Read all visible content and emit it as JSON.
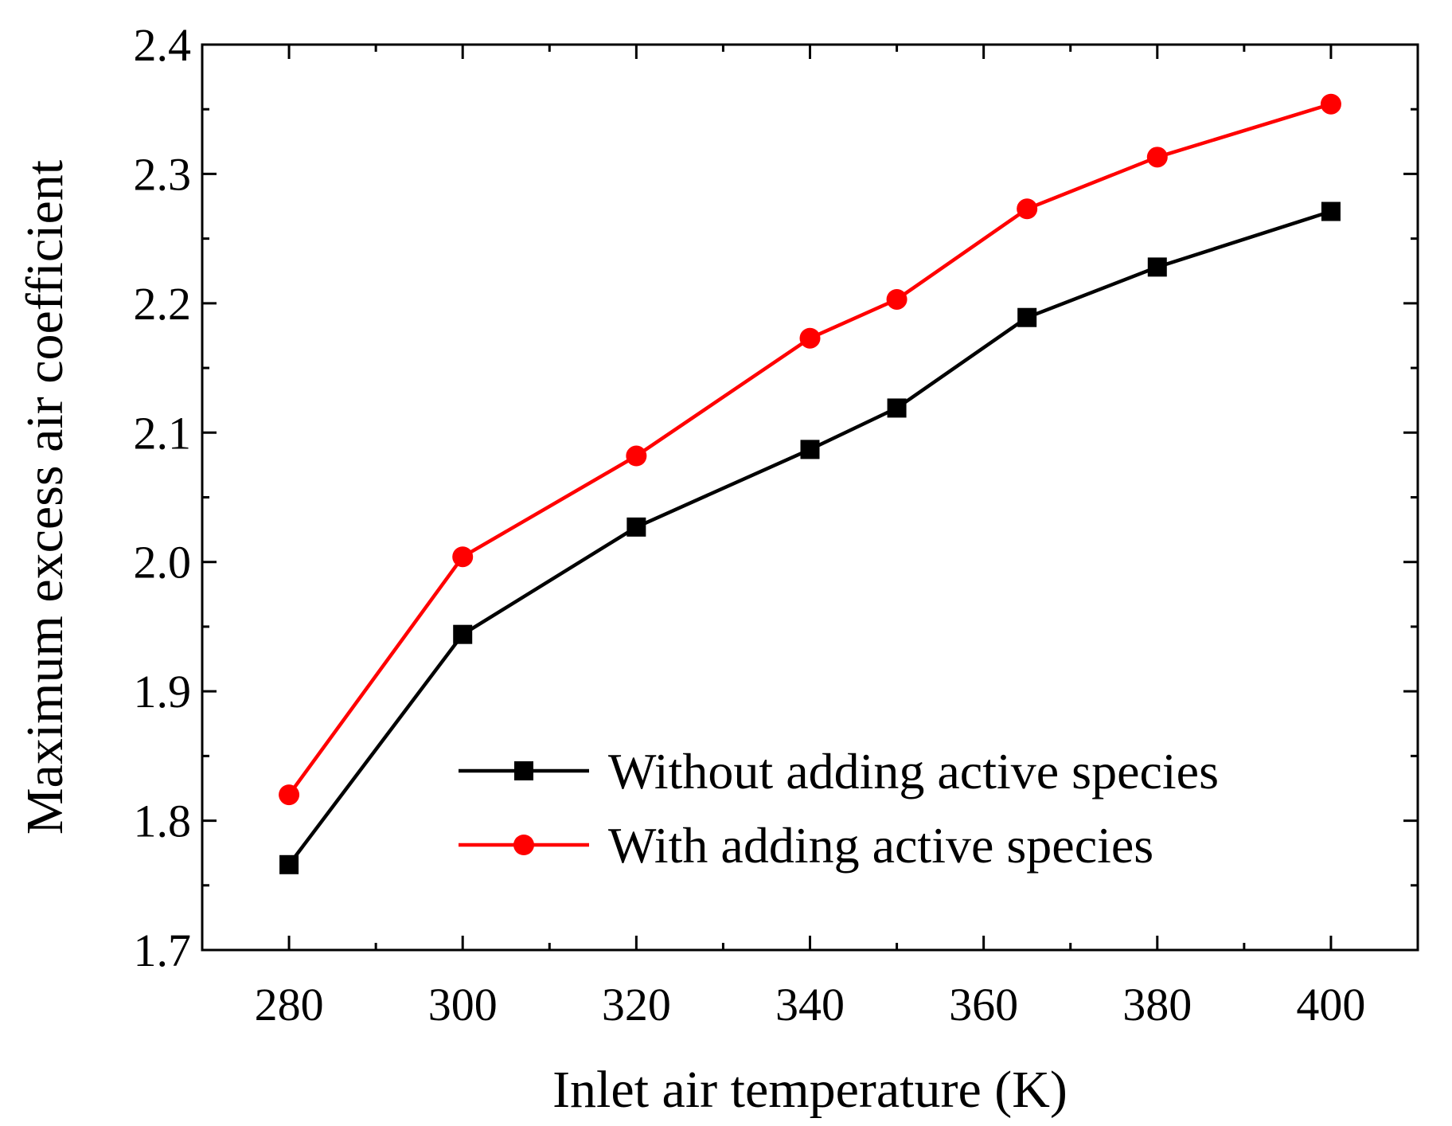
{
  "chart_data": {
    "type": "line",
    "title": "",
    "xlabel": "Inlet air temperature (K)",
    "ylabel": "Maximum excess air coefficient",
    "xlim": [
      270,
      410
    ],
    "ylim": [
      1.7,
      2.4
    ],
    "x_ticks": [
      280,
      300,
      320,
      340,
      360,
      380,
      400
    ],
    "y_ticks": [
      1.7,
      1.8,
      1.9,
      2.0,
      2.1,
      2.2,
      2.3,
      2.4
    ],
    "x_tick_labels": [
      "280",
      "300",
      "320",
      "340",
      "360",
      "380",
      "400"
    ],
    "y_tick_labels": [
      "1.7",
      "1.8",
      "1.9",
      "2.0",
      "2.1",
      "2.2",
      "2.3",
      "2.4"
    ],
    "grid": false,
    "legend_position": "lower-right",
    "series": [
      {
        "name": "Without adding active species",
        "color": "#000000",
        "marker": "square",
        "x": [
          280,
          300,
          320,
          340,
          350,
          365,
          380,
          400
        ],
        "values": [
          1.766,
          1.944,
          2.027,
          2.087,
          2.119,
          2.189,
          2.228,
          2.271
        ]
      },
      {
        "name": "With adding active species",
        "color": "#ff0000",
        "marker": "circle",
        "x": [
          280,
          300,
          320,
          340,
          350,
          365,
          380,
          400
        ],
        "values": [
          1.82,
          2.004,
          2.082,
          2.173,
          2.203,
          2.273,
          2.313,
          2.354
        ]
      }
    ]
  }
}
